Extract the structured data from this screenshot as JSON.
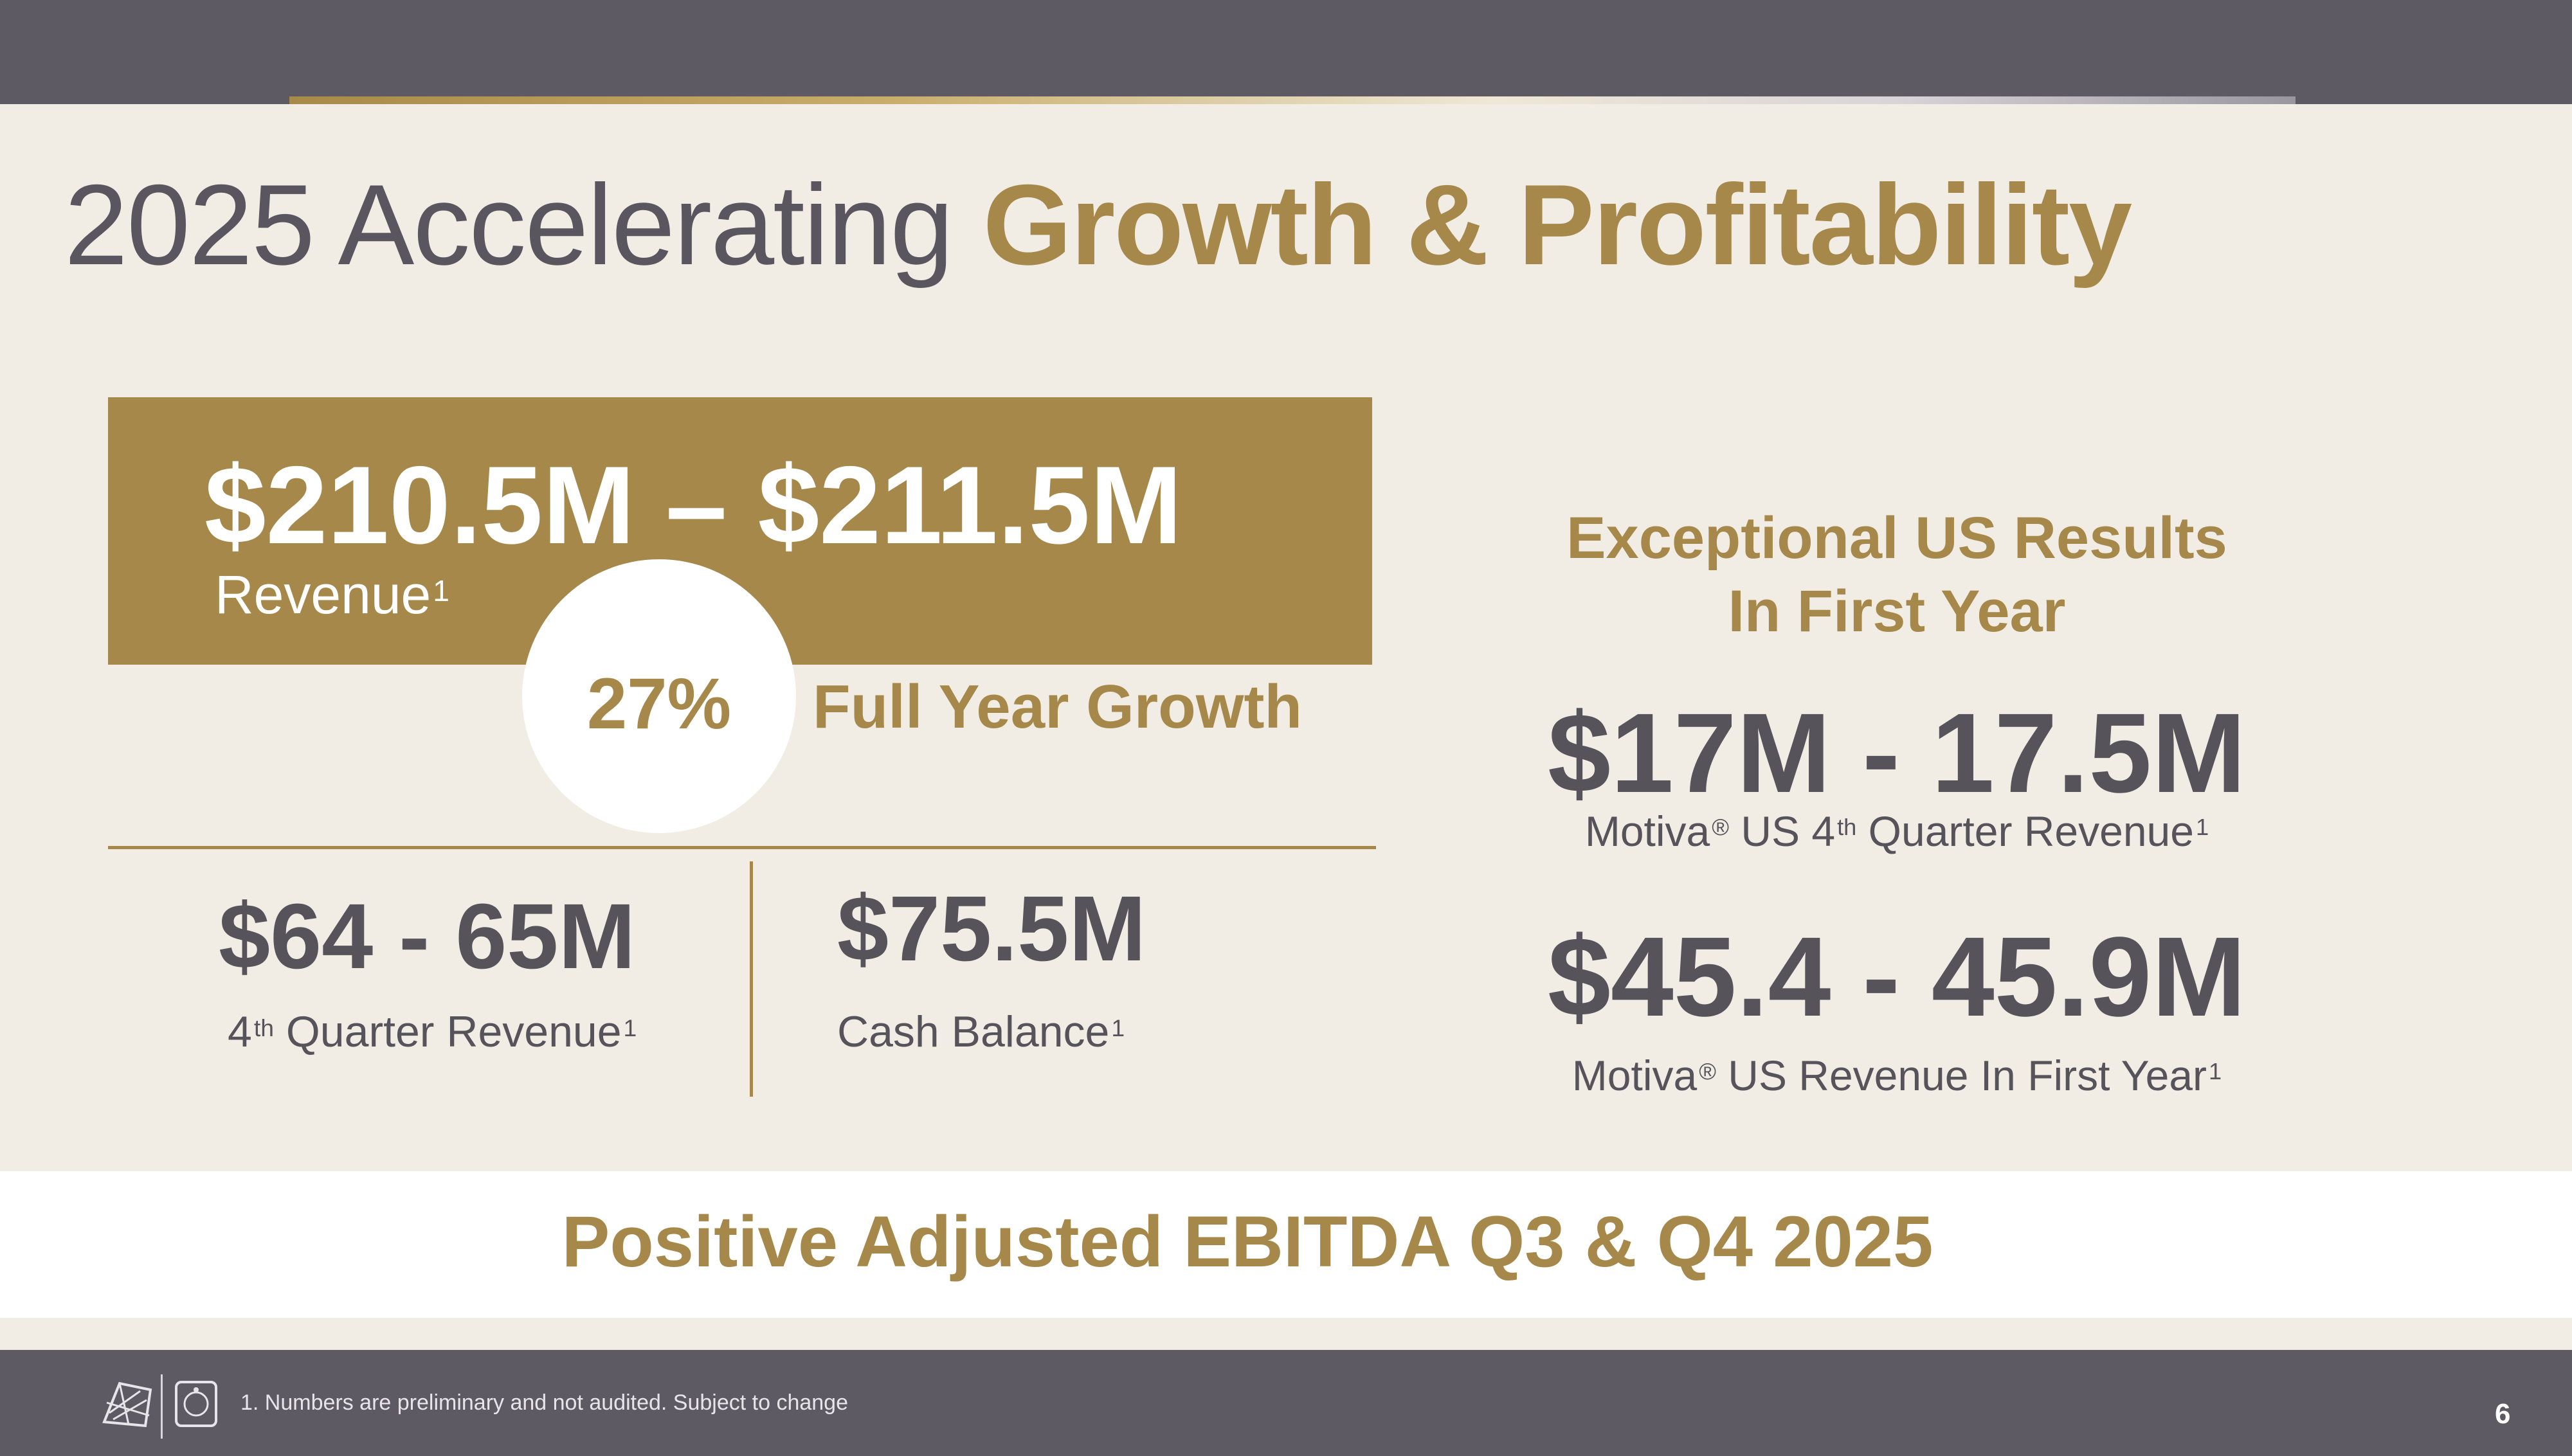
{
  "title": {
    "light": "2025 Accelerating",
    "accent": "Growth & Profitability"
  },
  "revenue": {
    "range": "$210.5M – $211.5M",
    "label": "Revenue",
    "footnote_ref": "1"
  },
  "growth": {
    "percent": "27%",
    "label": "Full Year Growth"
  },
  "q4_revenue": {
    "value": "$64 - 65M",
    "label_prefix": "4",
    "label_sup": "th",
    "label_rest": " Quarter Revenue",
    "footnote_ref": "1"
  },
  "cash_balance": {
    "value": "$75.5M",
    "label": "Cash Balance",
    "footnote_ref": "1"
  },
  "us_results": {
    "heading_line1": "Exceptional US Results",
    "heading_line2": "In First Year",
    "q4_value": "$17M - 17.5M",
    "q4_label_brand": "Motiva",
    "q4_label_reg": "®",
    "q4_label_mid": " US 4",
    "q4_label_sup": "th",
    "q4_label_rest": " Quarter Revenue",
    "q4_footnote_ref": "1",
    "year_value": "$45.4 - 45.9M",
    "year_label_brand": "Motiva",
    "year_label_reg": "®",
    "year_label_rest": " US Revenue In First Year",
    "year_footnote_ref": "1"
  },
  "ebitda": {
    "text": "Positive Adjusted EBITDA Q3 & Q4 2025"
  },
  "footer": {
    "footnote": "1. Numbers are preliminary and not audited. Subject to change",
    "page_number": "6"
  },
  "colors": {
    "gold": "#a6894a",
    "charcoal": "#5e5a63",
    "text_dark": "#57535b",
    "background": "#f1ede4"
  }
}
